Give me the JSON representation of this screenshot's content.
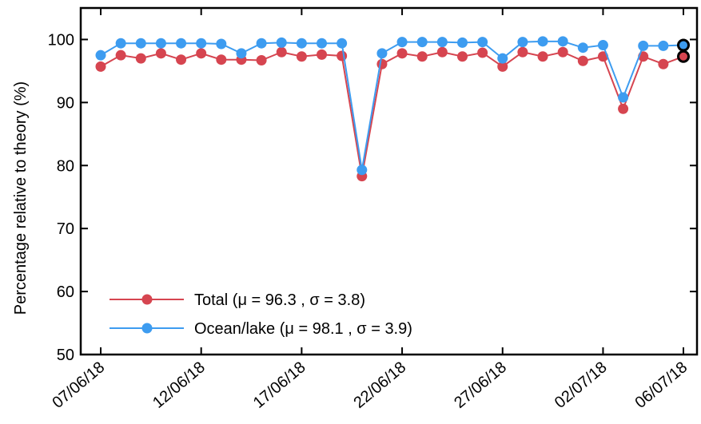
{
  "chart_data": {
    "type": "line",
    "ylabel": "Percentage relative to theory (%)",
    "xlabel": "",
    "ylim": [
      50,
      105
    ],
    "yticks": [
      50,
      60,
      70,
      80,
      90,
      100
    ],
    "xtick_labels": [
      "07/06/18",
      "12/06/18",
      "17/06/18",
      "22/06/18",
      "27/06/18",
      "02/07/18",
      "06/07/18"
    ],
    "dates": [
      "07/06/18",
      "08/06/18",
      "09/06/18",
      "10/06/18",
      "11/06/18",
      "12/06/18",
      "13/06/18",
      "14/06/18",
      "15/06/18",
      "16/06/18",
      "17/06/18",
      "18/06/18",
      "19/06/18",
      "20/06/18",
      "21/06/18",
      "22/06/18",
      "23/06/18",
      "24/06/18",
      "25/06/18",
      "26/06/18",
      "27/06/18",
      "28/06/18",
      "29/06/18",
      "30/06/18",
      "01/07/18",
      "02/07/18",
      "03/07/18",
      "04/07/18",
      "05/07/18",
      "06/07/18"
    ],
    "series": [
      {
        "name": "Total (μ = 96.3 , σ = 3.8)",
        "color": "#d64550",
        "values": [
          95.7,
          97.5,
          97.0,
          97.8,
          96.8,
          97.8,
          96.8,
          96.8,
          96.7,
          98.0,
          97.3,
          97.6,
          97.4,
          78.3,
          96.1,
          97.8,
          97.3,
          98.0,
          97.3,
          97.9,
          95.7,
          98.0,
          97.3,
          98.0,
          96.6,
          97.3,
          89.0,
          97.3,
          96.1,
          97.3
        ]
      },
      {
        "name": "Ocean/lake (μ = 98.1 , σ = 3.9)",
        "color": "#3d9cf0",
        "values": [
          97.5,
          99.4,
          99.4,
          99.4,
          99.4,
          99.4,
          99.3,
          97.8,
          99.4,
          99.5,
          99.4,
          99.4,
          99.4,
          79.3,
          97.8,
          99.6,
          99.6,
          99.6,
          99.5,
          99.6,
          97.0,
          99.6,
          99.7,
          99.7,
          98.7,
          99.1,
          90.8,
          99.0,
          99.0,
          99.1
        ]
      }
    ],
    "highlighted_last_points": true,
    "grid": false,
    "legend_position": "bottom-left"
  }
}
